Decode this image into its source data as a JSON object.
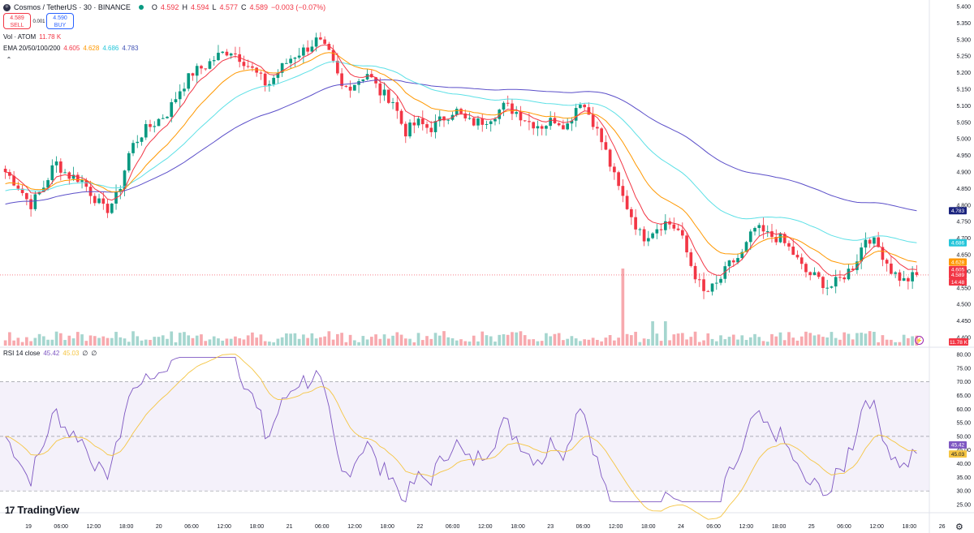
{
  "header": {
    "symbol": "Cosmos / TetherUS · 30 · BINANCE",
    "coin_icon": "atom-icon",
    "ohlc": {
      "o_label": "O",
      "o": "4.592",
      "h_label": "H",
      "h": "4.594",
      "l_label": "L",
      "l": "4.577",
      "c_label": "C",
      "c": "4.589",
      "change": "−0.003 (−0.07%)"
    },
    "sell": {
      "price": "4.589",
      "label": "SELL"
    },
    "buy": {
      "price": "4.590",
      "label": "BUY"
    },
    "spread": "0.001",
    "volume": {
      "label": "Vol · ATOM",
      "value": "11.78 K"
    },
    "ema": {
      "label": "EMA 20/50/100/200",
      "v20": "4.605",
      "v50": "4.628",
      "v100": "4.686",
      "v200": "4.783"
    },
    "rsi": {
      "label": "RSI 14 close",
      "value": "45.42",
      "ma": "45.03",
      "e1": "∅",
      "e2": "∅"
    }
  },
  "logo_text": "TradingView",
  "colors": {
    "up": "#089981",
    "down": "#f23645",
    "ema20": "#f23645",
    "ema50": "#ff9800",
    "ema100": "#5ce0e6",
    "ema200": "#5b4fc9",
    "rsi": "#7e57c2",
    "rsi_ma": "#f5c542",
    "rsi_band": "#ede7f6",
    "vol_up": "#a5d6cf",
    "vol_down": "#f7a9ae",
    "accent": "#2962ff"
  },
  "price_tags": [
    {
      "id": "ema200",
      "text": "4.783",
      "value": 4.783,
      "color": "#1a237e"
    },
    {
      "id": "ema100",
      "text": "4.686",
      "value": 4.686,
      "color": "#26c6da"
    },
    {
      "id": "ema50",
      "text": "4.628",
      "value": 4.628,
      "color": "#ff9800"
    },
    {
      "id": "ema20",
      "text": "4.605",
      "value": 4.605,
      "color": "#f23645"
    },
    {
      "id": "last",
      "text": "4.589",
      "value": 4.589,
      "color": "#f23645"
    },
    {
      "id": "timer",
      "text": "14:48",
      "value": 4.568,
      "color": "#f23645"
    }
  ],
  "vol_tag": "11.78 K",
  "rsi_tags": [
    {
      "id": "rsi",
      "text": "45.42",
      "value": 45.42,
      "color": "#7e57c2"
    },
    {
      "id": "rsi_ma",
      "text": "45.03",
      "value": 45.03,
      "color": "#f5c542"
    }
  ],
  "chart_data": {
    "type": "candlestick",
    "price_axis": {
      "ticks": [
        "5.400",
        "5.350",
        "5.300",
        "5.250",
        "5.200",
        "5.150",
        "5.100",
        "5.050",
        "5.000",
        "4.950",
        "4.900",
        "4.850",
        "4.800",
        "4.750",
        "4.700",
        "4.650",
        "4.600",
        "4.550",
        "4.500",
        "4.450",
        "4.400"
      ],
      "min": 4.4,
      "max": 5.4
    },
    "rsi_axis": {
      "ticks": [
        "80.00",
        "75.00",
        "70.00",
        "65.00",
        "60.00",
        "55.00",
        "50.00",
        "45.00",
        "40.00",
        "35.00",
        "30.00",
        "25.00"
      ],
      "min": 25,
      "max": 80,
      "bands": [
        30,
        50,
        70
      ]
    },
    "x_labels": [
      "19",
      "06:00",
      "12:00",
      "18:00",
      "20",
      "06:00",
      "12:00",
      "18:00",
      "21",
      "06:00",
      "12:00",
      "18:00",
      "22",
      "06:00",
      "12:00",
      "18:00",
      "23",
      "06:00",
      "12:00",
      "18:00",
      "24",
      "06:00",
      "12:00",
      "18:00",
      "25",
      "06:00",
      "12:00",
      "18:00",
      "26"
    ],
    "close_path": [
      [
        0,
        4.9
      ],
      [
        8,
        4.86
      ],
      [
        16,
        4.8
      ],
      [
        24,
        4.85
      ],
      [
        32,
        4.93
      ],
      [
        40,
        4.89
      ],
      [
        48,
        4.88
      ],
      [
        56,
        4.83
      ],
      [
        64,
        4.78
      ],
      [
        72,
        4.83
      ],
      [
        80,
        4.97
      ],
      [
        88,
        5.02
      ],
      [
        96,
        5.05
      ],
      [
        104,
        5.08
      ],
      [
        112,
        5.15
      ],
      [
        120,
        5.2
      ],
      [
        128,
        5.22
      ],
      [
        136,
        5.25
      ],
      [
        144,
        5.27
      ],
      [
        152,
        5.24
      ],
      [
        160,
        5.2
      ],
      [
        168,
        5.16
      ],
      [
        176,
        5.21
      ],
      [
        184,
        5.25
      ],
      [
        192,
        5.27
      ],
      [
        200,
        5.3
      ],
      [
        208,
        5.25
      ],
      [
        216,
        5.15
      ],
      [
        224,
        5.17
      ],
      [
        232,
        5.2
      ],
      [
        240,
        5.14
      ],
      [
        248,
        5.12
      ],
      [
        256,
        5.02
      ],
      [
        264,
        5.05
      ],
      [
        272,
        5.03
      ],
      [
        280,
        5.06
      ],
      [
        288,
        5.09
      ],
      [
        296,
        5.05
      ],
      [
        304,
        5.05
      ],
      [
        312,
        5.07
      ],
      [
        320,
        5.1
      ],
      [
        328,
        5.08
      ],
      [
        336,
        5.05
      ],
      [
        344,
        5.04
      ],
      [
        352,
        5.06
      ],
      [
        360,
        5.04
      ],
      [
        368,
        5.12
      ],
      [
        376,
        5.06
      ],
      [
        384,
        4.97
      ],
      [
        392,
        4.86
      ],
      [
        400,
        4.78
      ],
      [
        408,
        4.7
      ],
      [
        416,
        4.73
      ],
      [
        424,
        4.75
      ],
      [
        432,
        4.72
      ],
      [
        440,
        4.61
      ],
      [
        448,
        4.53
      ],
      [
        456,
        4.56
      ],
      [
        464,
        4.62
      ],
      [
        472,
        4.65
      ],
      [
        480,
        4.73
      ],
      [
        488,
        4.71
      ],
      [
        496,
        4.7
      ],
      [
        504,
        4.66
      ],
      [
        512,
        4.6
      ],
      [
        520,
        4.58
      ],
      [
        528,
        4.55
      ],
      [
        536,
        4.58
      ],
      [
        544,
        4.62
      ],
      [
        552,
        4.71
      ],
      [
        560,
        4.67
      ],
      [
        568,
        4.6
      ],
      [
        576,
        4.57
      ],
      [
        584,
        4.59
      ]
    ],
    "ema_endpoints": {
      "ema20": 4.605,
      "ema50": 4.628,
      "ema100": 4.686,
      "ema200": 4.783
    },
    "last_price": 4.589,
    "last_volume": "11.78 K",
    "rsi_last": 45.42,
    "rsi_ma_last": 45.03
  }
}
